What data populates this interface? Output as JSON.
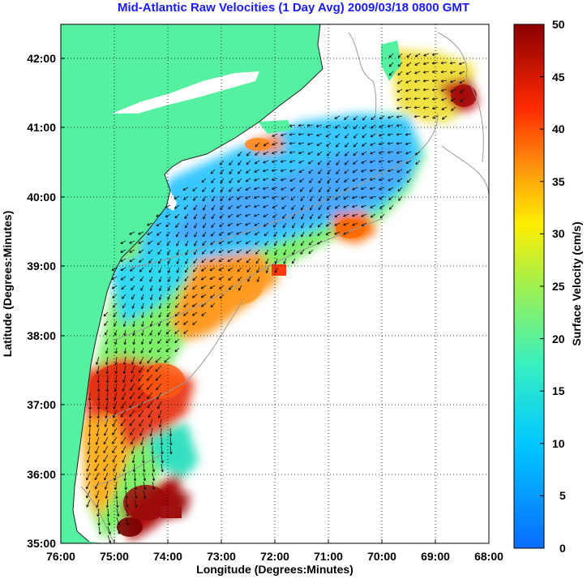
{
  "title": "Mid-Atlantic Raw Velocities (1 Day Avg) 2009/03/18 0800 GMT",
  "map": {
    "xlabel": "Longitude (Degrees:Minutes)",
    "ylabel": "Latitude (Degrees:Minutes)",
    "x_ticks": [
      "76:00",
      "75:00",
      "74:00",
      "73:00",
      "72:00",
      "71:00",
      "70:00",
      "69:00",
      "68:00"
    ],
    "y_ticks": [
      "42:00",
      "41:00",
      "40:00",
      "39:00",
      "38:00",
      "37:00",
      "36:00",
      "35:00"
    ],
    "grid": "dotted",
    "land_color": "#55f0a0",
    "contour_color": "#9a9a9a"
  },
  "colorbar": {
    "label": "Surface Velocity (cm/s)",
    "ticks": [
      "50",
      "45",
      "40",
      "35",
      "30",
      "25",
      "20",
      "15",
      "10",
      "5",
      "0"
    ],
    "range": [
      0,
      50
    ],
    "colormap": "jet"
  }
}
